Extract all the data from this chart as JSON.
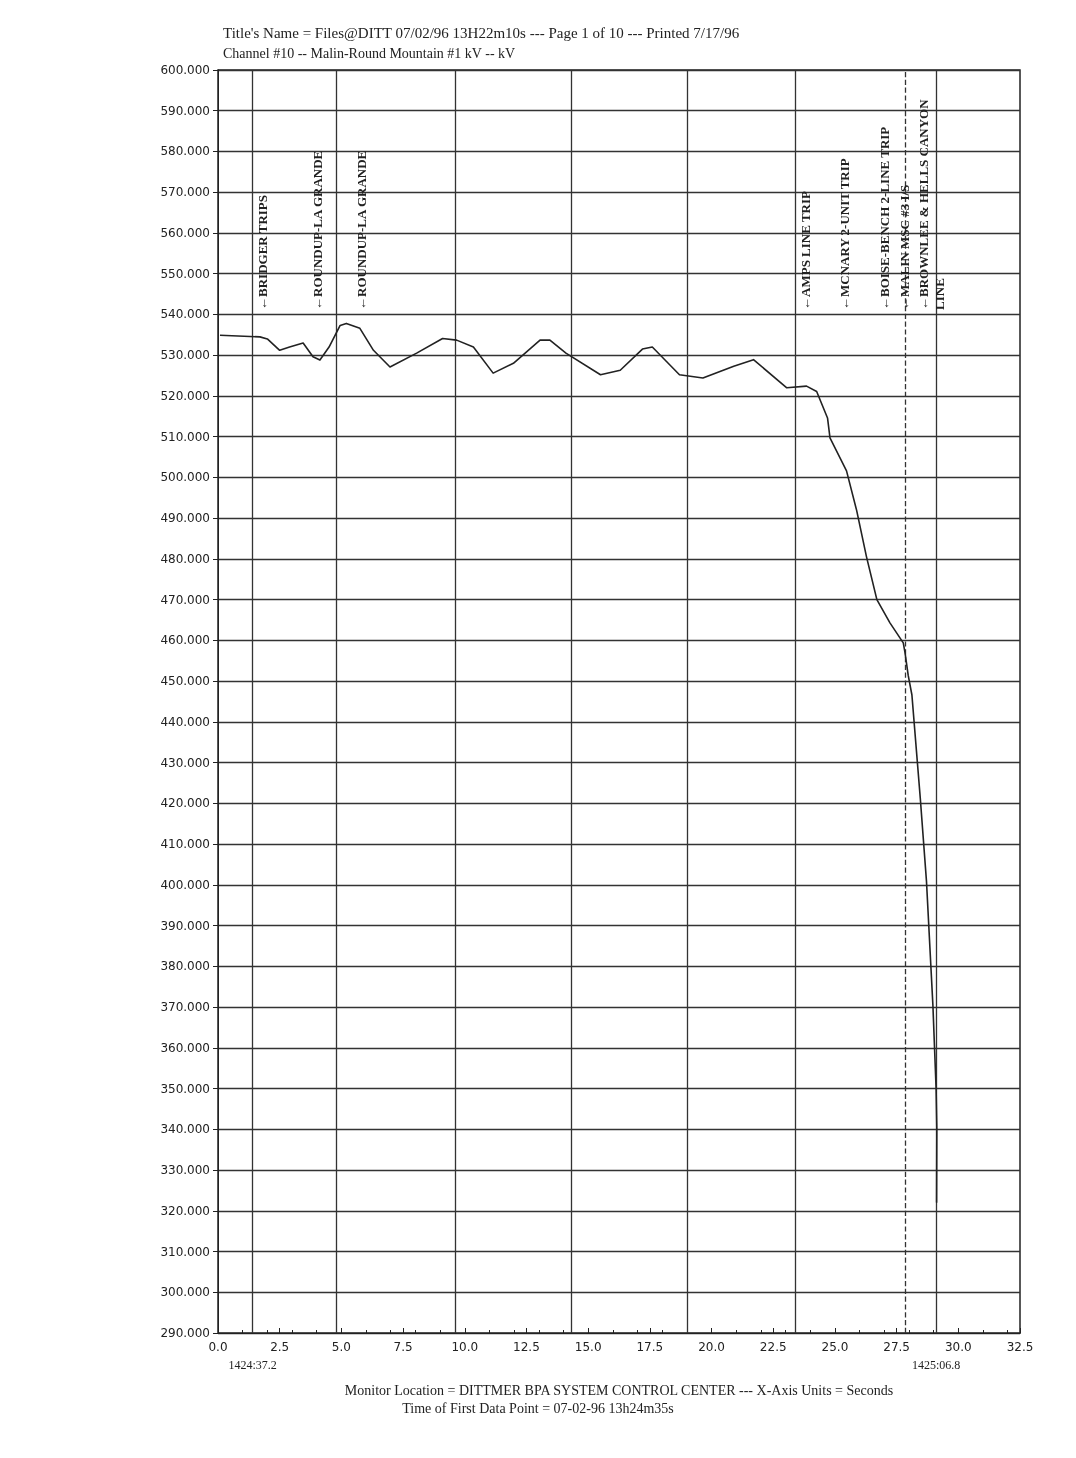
{
  "chart_data": {
    "type": "line",
    "title": "Title's Name = Files@DITT 07/02/96 13H22m10s --- Page 1 of 10 --- Printed 7/17/96",
    "subtitle": "Channel #10 -- Malin-Round Mountain #1 kV -- kV",
    "xlabel": "Monitor Location = DITTMER BPA SYSTEM CONTROL CENTER --- X-Axis Units = Seconds",
    "annotations": [
      "Time of First Data Point = 07-02-96 13h24m35s",
      "←BRIDGER TRIPS",
      "←ROUNDUP-LA GRANDE",
      "←ROUNDUP-LA GRANDE",
      "←AMPS LINE TRIP",
      "←MCNARY 2-UNIT TRIP",
      "←BOISE-BENCH 2-LINE TRIP",
      "←MALIN MSC #3 I/S",
      "←BROWNLEE & HELLS CANYON LINE",
      "1424:37.2",
      "1425:06.8"
    ],
    "series": [
      {
        "color": "#222222",
        "x": [
          0.08,
          1.7,
          2.0,
          2.5,
          2.9,
          3.45,
          3.85,
          4.13,
          4.5,
          4.95,
          5.2,
          5.75,
          6.3,
          6.97,
          8.05,
          9.1,
          9.67,
          10.35,
          11.15,
          11.97,
          13.05,
          13.45,
          14.1,
          15.5,
          16.3,
          17.2,
          17.6,
          18.7,
          19.65,
          20.9,
          21.7,
          23.05,
          23.85,
          24.26,
          24.7,
          24.8,
          25.47,
          25.88,
          26.28,
          26.7,
          27.23,
          27.77,
          27.84,
          27.97,
          28.12,
          28.46,
          28.71,
          28.97,
          29.1,
          29.13,
          29.12
        ],
        "values": [
          534.9,
          534.5,
          534,
          531.2,
          532,
          533,
          529.6,
          528.8,
          532,
          537.3,
          537.8,
          536.6,
          531.2,
          527.1,
          530.5,
          534.1,
          533.7,
          532,
          525.6,
          528,
          533.7,
          533.7,
          530.5,
          525.2,
          526.3,
          531.5,
          532,
          525.2,
          524.4,
          527.3,
          528.9,
          522,
          522.4,
          521.1,
          514.6,
          509.7,
          501.6,
          491.9,
          480.5,
          470,
          464.3,
          459.4,
          457,
          451.4,
          446.6,
          421.2,
          400.9,
          370.5,
          350,
          340,
          322
        ]
      }
    ],
    "xlim": [
      0,
      32.5
    ],
    "ylim": [
      290,
      600
    ],
    "xticks": [
      {
        "value": 0,
        "label": "0.0"
      },
      {
        "value": 2.5,
        "label": "2.5"
      },
      {
        "value": 5,
        "label": "5.0"
      },
      {
        "value": 7.5,
        "label": "7.5"
      },
      {
        "value": 10,
        "label": "10.0"
      },
      {
        "value": 12.5,
        "label": "12.5"
      },
      {
        "value": 15,
        "label": "15.0"
      },
      {
        "value": 17.5,
        "label": "17.5"
      },
      {
        "value": 20,
        "label": "20.0"
      },
      {
        "value": 22.5,
        "label": "22.5"
      },
      {
        "value": 25,
        "label": "25.0"
      },
      {
        "value": 27.5,
        "label": "27.5"
      },
      {
        "value": 30,
        "label": "30.0"
      },
      {
        "value": 32.5,
        "label": "32.5"
      }
    ],
    "yticks": [
      {
        "value": 290,
        "label": "290.000"
      },
      {
        "value": 300,
        "label": "300.000"
      },
      {
        "value": 310,
        "label": "310.000"
      },
      {
        "value": 320,
        "label": "320.000"
      },
      {
        "value": 330,
        "label": "330.000"
      },
      {
        "value": 340,
        "label": "340.000"
      },
      {
        "value": 350,
        "label": "350.000"
      },
      {
        "value": 360,
        "label": "360.000"
      },
      {
        "value": 370,
        "label": "370.000"
      },
      {
        "value": 380,
        "label": "380.000"
      },
      {
        "value": 390,
        "label": "390.000"
      },
      {
        "value": 400,
        "label": "400.000"
      },
      {
        "value": 410,
        "label": "410.000"
      },
      {
        "value": 420,
        "label": "420.000"
      },
      {
        "value": 430,
        "label": "430.000"
      },
      {
        "value": 440,
        "label": "440.000"
      },
      {
        "value": 450,
        "label": "450.000"
      },
      {
        "value": 460,
        "label": "460.000"
      },
      {
        "value": 470,
        "label": "470.000"
      },
      {
        "value": 480,
        "label": "480.000"
      },
      {
        "value": 490,
        "label": "490.000"
      },
      {
        "value": 500,
        "label": "500.000"
      },
      {
        "value": 510,
        "label": "510.000"
      },
      {
        "value": 520,
        "label": "520.000"
      },
      {
        "value": 530,
        "label": "530.000"
      },
      {
        "value": 540,
        "label": "540.000"
      },
      {
        "value": 550,
        "label": "550.000"
      },
      {
        "value": 560,
        "label": "560.000"
      },
      {
        "value": 570,
        "label": "570.000"
      },
      {
        "value": 580,
        "label": "580.000"
      },
      {
        "value": 590,
        "label": "590.000"
      },
      {
        "value": 600,
        "label": "600.000"
      }
    ],
    "ref_lines": [
      {
        "axis": "x",
        "value": 1.4
      },
      {
        "axis": "x",
        "value": 29.1
      },
      {
        "axis": "x",
        "value": 4.8
      },
      {
        "axis": "x",
        "value": 9.6
      },
      {
        "axis": "x",
        "value": 14.3
      },
      {
        "axis": "x",
        "value": 19.0
      },
      {
        "axis": "x",
        "value": 23.4
      },
      {
        "axis": "x",
        "value": 27.85,
        "line_style": "dashed"
      }
    ],
    "grid": "y",
    "marker": "none",
    "line_style": "solid"
  }
}
